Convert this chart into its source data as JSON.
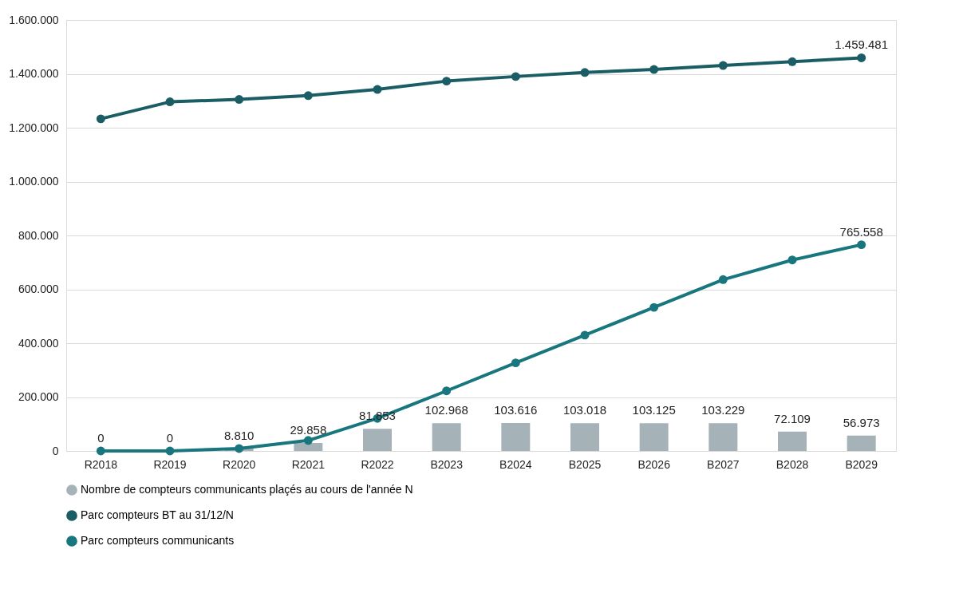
{
  "chart_data": {
    "type": "bar",
    "categories": [
      "R2018",
      "R2019",
      "R2020",
      "R2021",
      "R2022",
      "B2023",
      "B2024",
      "B2025",
      "B2026",
      "B2027",
      "B2028",
      "B2029"
    ],
    "series": [
      {
        "name": "Nombre de compteurs communicants plaçés au cours de l'année N",
        "color": "#a5b3b8",
        "values": [
          0,
          0,
          8810,
          29858,
          81853,
          102968,
          103616,
          103018,
          103125,
          103229,
          72109,
          56973
        ],
        "value_labels": [
          "0",
          "0",
          "8.810",
          "29.858",
          "81.853",
          "102.968",
          "103.616",
          "103.018",
          "103.125",
          "103.229",
          "72.109",
          "56.973"
        ]
      },
      {
        "name": "Parc compteurs BT au 31/12/N",
        "type": "line",
        "color": "#1b5d64",
        "values": [
          1233000,
          1296000,
          1305000,
          1319000,
          1342000,
          1373000,
          1390000,
          1405000,
          1416000,
          1431000,
          1445000,
          1459481
        ],
        "value_labels": [
          null,
          null,
          null,
          null,
          null,
          null,
          null,
          null,
          null,
          null,
          null,
          "1.459.481"
        ]
      },
      {
        "name": "Parc compteurs communicants",
        "type": "line",
        "color": "#17767e",
        "values": [
          0,
          0,
          9000,
          39000,
          121000,
          223000,
          327000,
          430000,
          533000,
          636000,
          709000,
          765558
        ],
        "value_labels": [
          null,
          null,
          null,
          null,
          null,
          null,
          null,
          null,
          null,
          null,
          null,
          "765.558"
        ]
      }
    ],
    "ylim": [
      0,
      1600000
    ],
    "yticks": [
      {
        "value": 0,
        "label": "0"
      },
      {
        "value": 200000,
        "label": "200.000"
      },
      {
        "value": 400000,
        "label": "400.000"
      },
      {
        "value": 600000,
        "label": "600.000"
      },
      {
        "value": 800000,
        "label": "800.000"
      },
      {
        "value": 1000000,
        "label": "1.000.000"
      },
      {
        "value": 1200000,
        "label": "1.200.000"
      },
      {
        "value": 1400000,
        "label": "1.400.000"
      },
      {
        "value": 1600000,
        "label": "1.600.000"
      }
    ],
    "grid": "y",
    "legend": "bottom",
    "marker": "circle",
    "line_style": "solid"
  }
}
